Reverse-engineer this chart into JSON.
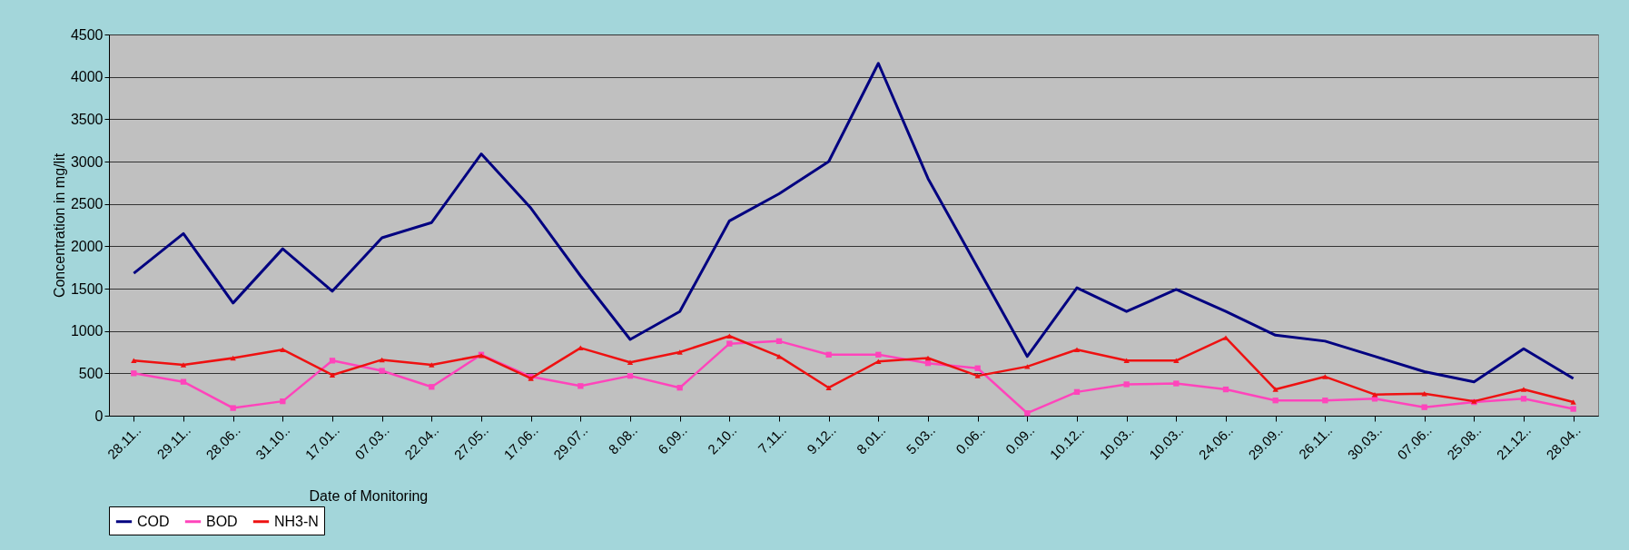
{
  "chart_data": {
    "type": "line",
    "xlabel": "Date of Monitoring",
    "ylabel": "Concentration in mg/lit",
    "categories": [
      "28.11..",
      "29.11..",
      "28.06..",
      "31.10..",
      "17.01..",
      "07.03..",
      "22.04..",
      "27.05..",
      "17.06..",
      "29.07..",
      "8.08..",
      "6.09..",
      "2.10..",
      "7.11..",
      "9.12..",
      "8.01..",
      "5.03..",
      "0.06..",
      "0.09..",
      "10.12..",
      "10.03..",
      "10.03..",
      "24.06..",
      "29.09..",
      "26.11..",
      "30.03..",
      "07.06..",
      "25.08..",
      "21.12..",
      "28.04.."
    ],
    "series": [
      {
        "name": "COD",
        "color": "#000080",
        "marker": "none",
        "values": [
          1680,
          2150,
          1330,
          1970,
          1470,
          2100,
          2280,
          3090,
          2450,
          1650,
          900,
          1230,
          2300,
          2620,
          3000,
          4160,
          2800,
          1750,
          700,
          1510,
          1230,
          1490,
          1230,
          950,
          880,
          700,
          520,
          400,
          790,
          440
        ]
      },
      {
        "name": "BOD",
        "color": "#ff44bb",
        "marker": "square",
        "values": [
          500,
          400,
          90,
          170,
          650,
          530,
          340,
          720,
          460,
          350,
          470,
          330,
          850,
          880,
          720,
          720,
          620,
          560,
          30,
          280,
          370,
          380,
          310,
          180,
          180,
          200,
          100,
          160,
          200,
          80
        ]
      },
      {
        "name": "NH3-N",
        "color": "#ee1111",
        "marker": "triangle",
        "values": [
          650,
          600,
          680,
          780,
          480,
          660,
          600,
          710,
          440,
          800,
          630,
          750,
          940,
          700,
          330,
          640,
          680,
          470,
          580,
          780,
          650,
          650,
          920,
          310,
          460,
          250,
          260,
          170,
          310,
          160
        ]
      }
    ],
    "ylim": [
      0,
      4500
    ],
    "yticks": [
      0,
      500,
      1000,
      1500,
      2000,
      2500,
      3000,
      3500,
      4000,
      4500
    ],
    "grid": "y",
    "legend": "bottom"
  }
}
